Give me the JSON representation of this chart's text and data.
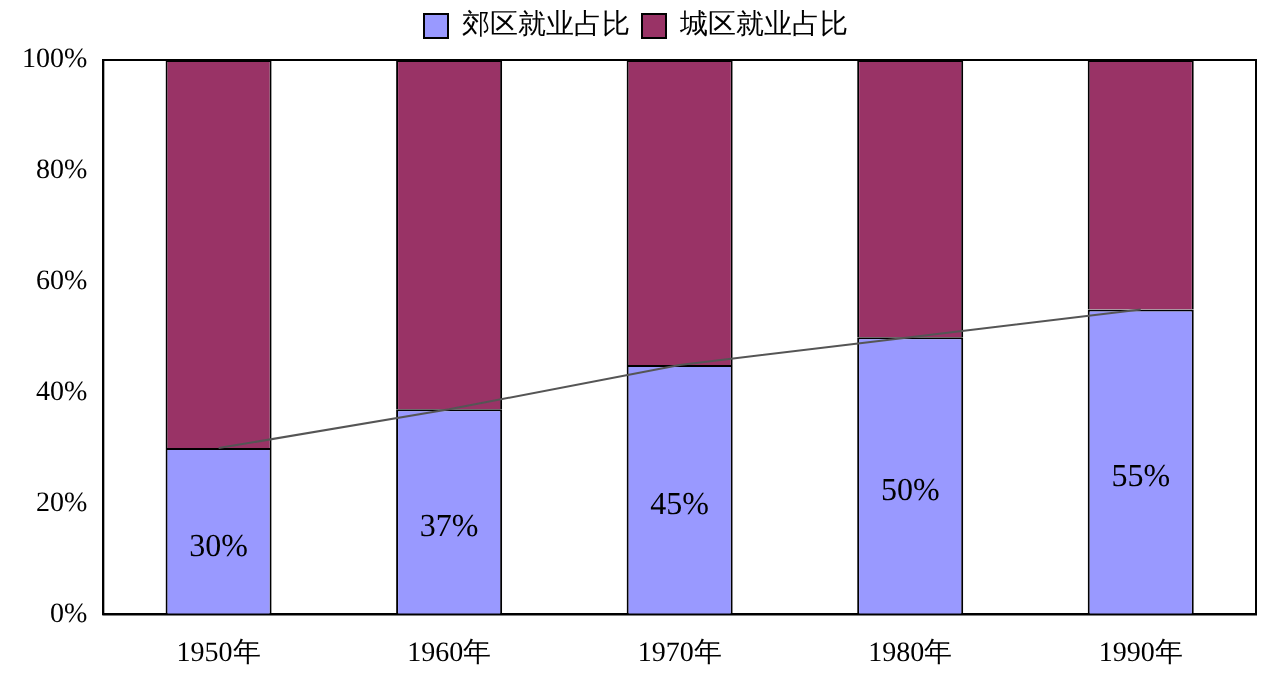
{
  "chart_data": {
    "type": "bar",
    "stacked": true,
    "categories": [
      "1950年",
      "1960年",
      "1970年",
      "1980年",
      "1990年"
    ],
    "series": [
      {
        "name": "郊区就业占比",
        "color": "#9999ff",
        "values": [
          30,
          37,
          45,
          50,
          55
        ],
        "value_labels": [
          "30%",
          "37%",
          "45%",
          "50%",
          "55%"
        ]
      },
      {
        "name": "城区就业占比",
        "color": "#993366",
        "values": [
          70,
          63,
          55,
          50,
          45
        ]
      },
      {
        "type": "line",
        "color": "#555555",
        "values": [
          30,
          37,
          45,
          50,
          55
        ]
      }
    ],
    "ylim": [
      0,
      100
    ],
    "yticks": [
      {
        "value": 0,
        "label": "0%"
      },
      {
        "value": 20,
        "label": "20%"
      },
      {
        "value": 40,
        "label": "40%"
      },
      {
        "value": 60,
        "label": "60%"
      },
      {
        "value": 80,
        "label": "80%"
      },
      {
        "value": 100,
        "label": "100%"
      }
    ],
    "grid": false,
    "legend": "top",
    "marker": "none"
  }
}
